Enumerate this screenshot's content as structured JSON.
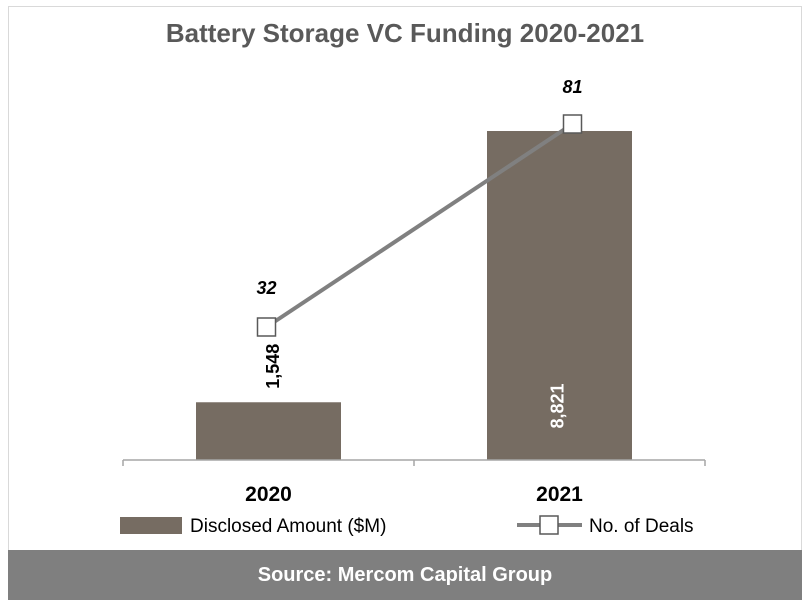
{
  "chart_data": {
    "type": "bar",
    "title": "Battery Storage VC Funding 2020-2021",
    "categories": [
      "2020",
      "2021"
    ],
    "series": [
      {
        "name": "Disclosed Amount ($M)",
        "type": "bar",
        "values": [
          1548,
          8821
        ],
        "labels": [
          "1,548",
          "8,821"
        ]
      },
      {
        "name": "No. of Deals",
        "type": "line",
        "values": [
          32,
          81
        ],
        "labels": [
          "32",
          "81"
        ]
      }
    ],
    "legend": "bottom"
  },
  "colors": {
    "bar": "#766c62",
    "line": "#808080",
    "title": "#595959",
    "source_bar": "#7f7f7f"
  },
  "source": "Source: Mercom Capital Group"
}
